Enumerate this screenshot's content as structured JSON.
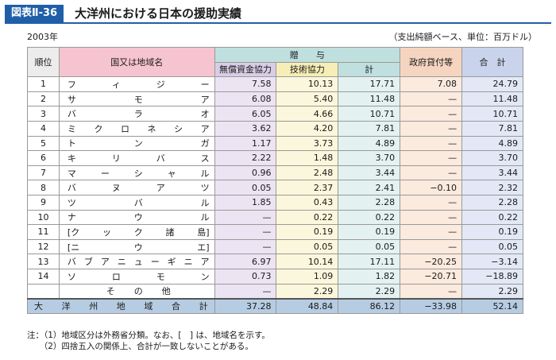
{
  "header": {
    "badge": "図表Ⅱ-36",
    "title": "大洋州における日本の援助実績",
    "year": "2003年",
    "unit": "（支出純額ベース、単位：百万ドル）"
  },
  "columns": {
    "rank": "順位",
    "country": "国又は地域名",
    "gift": "贈　　与",
    "grant": "無償資金協力",
    "tech": "技術協力",
    "sub": "計",
    "loan": "政府貸付等",
    "total": "合　計"
  },
  "rows": [
    {
      "rank": "1",
      "country": [
        "フ",
        "ィ",
        "ジ",
        "ー"
      ],
      "grant": "7.58",
      "tech": "10.13",
      "sub": "17.71",
      "loan": "7.08",
      "total": "24.79"
    },
    {
      "rank": "2",
      "country": [
        "サ",
        "モ",
        "ア"
      ],
      "grant": "6.08",
      "tech": "5.40",
      "sub": "11.48",
      "loan": "—",
      "total": "11.48"
    },
    {
      "rank": "3",
      "country": [
        "バ",
        "ラ",
        "オ"
      ],
      "grant": "6.05",
      "tech": "4.66",
      "sub": "10.71",
      "loan": "—",
      "total": "10.71"
    },
    {
      "rank": "4",
      "country": [
        "ミ",
        "ク",
        "ロ",
        "ネ",
        "シ",
        "ア"
      ],
      "grant": "3.62",
      "tech": "4.20",
      "sub": "7.81",
      "loan": "—",
      "total": "7.81"
    },
    {
      "rank": "5",
      "country": [
        "ト",
        "ン",
        "ガ"
      ],
      "grant": "1.17",
      "tech": "3.73",
      "sub": "4.89",
      "loan": "—",
      "total": "4.89"
    },
    {
      "rank": "6",
      "country": [
        "キ",
        "リ",
        "バ",
        "ス"
      ],
      "grant": "2.22",
      "tech": "1.48",
      "sub": "3.70",
      "loan": "—",
      "total": "3.70"
    },
    {
      "rank": "7",
      "country": [
        "マ",
        "ー",
        "シ",
        "ャ",
        "ル"
      ],
      "grant": "0.96",
      "tech": "2.48",
      "sub": "3.44",
      "loan": "—",
      "total": "3.44"
    },
    {
      "rank": "8",
      "country": [
        "バ",
        "ヌ",
        "ア",
        "ツ"
      ],
      "grant": "0.05",
      "tech": "2.37",
      "sub": "2.41",
      "loan": "−0.10",
      "total": "2.32"
    },
    {
      "rank": "9",
      "country": [
        "ツ",
        "バ",
        "ル"
      ],
      "grant": "1.85",
      "tech": "0.43",
      "sub": "2.28",
      "loan": "—",
      "total": "2.28"
    },
    {
      "rank": "10",
      "country": [
        "ナ",
        "ウ",
        "ル"
      ],
      "grant": "—",
      "tech": "0.22",
      "sub": "0.22",
      "loan": "—",
      "total": "0.22"
    },
    {
      "rank": "11",
      "country": [
        "[ク",
        "ッ",
        "ク",
        "諸",
        "島]"
      ],
      "grant": "—",
      "tech": "0.19",
      "sub": "0.19",
      "loan": "—",
      "total": "0.19"
    },
    {
      "rank": "12",
      "country": [
        "[ニ",
        "ウ",
        "エ]"
      ],
      "grant": "—",
      "tech": "0.05",
      "sub": "0.05",
      "loan": "—",
      "total": "0.05"
    },
    {
      "rank": "13",
      "country": [
        "バ",
        "ブ",
        "ア",
        "ニ",
        "ュ",
        "ー",
        "ギ",
        "ニ",
        "ア"
      ],
      "grant": "6.97",
      "tech": "10.14",
      "sub": "17.11",
      "loan": "−20.25",
      "total": "−3.14"
    },
    {
      "rank": "14",
      "country": [
        "ソ",
        "ロ",
        "モ",
        "ン"
      ],
      "grant": "0.73",
      "tech": "1.09",
      "sub": "1.82",
      "loan": "−20.71",
      "total": "−18.89"
    },
    {
      "rank": "",
      "country": [
        "そ",
        "の",
        "他"
      ],
      "center": true,
      "grant": "—",
      "tech": "2.29",
      "sub": "2.29",
      "loan": "—",
      "total": "2.29"
    }
  ],
  "total_row": {
    "label": [
      "大",
      "洋",
      "州",
      "地",
      "域",
      "合",
      "計"
    ],
    "grant": "37.28",
    "tech": "48.84",
    "sub": "86.12",
    "loan": "−33.98",
    "total": "52.14"
  },
  "notes": {
    "line1": "注：（1）地域区分は外務省分類。なお、[　] は、地域名を示す。",
    "line2": "　　（2）四捨五入の関係上、合計が一致しないことがある。"
  }
}
